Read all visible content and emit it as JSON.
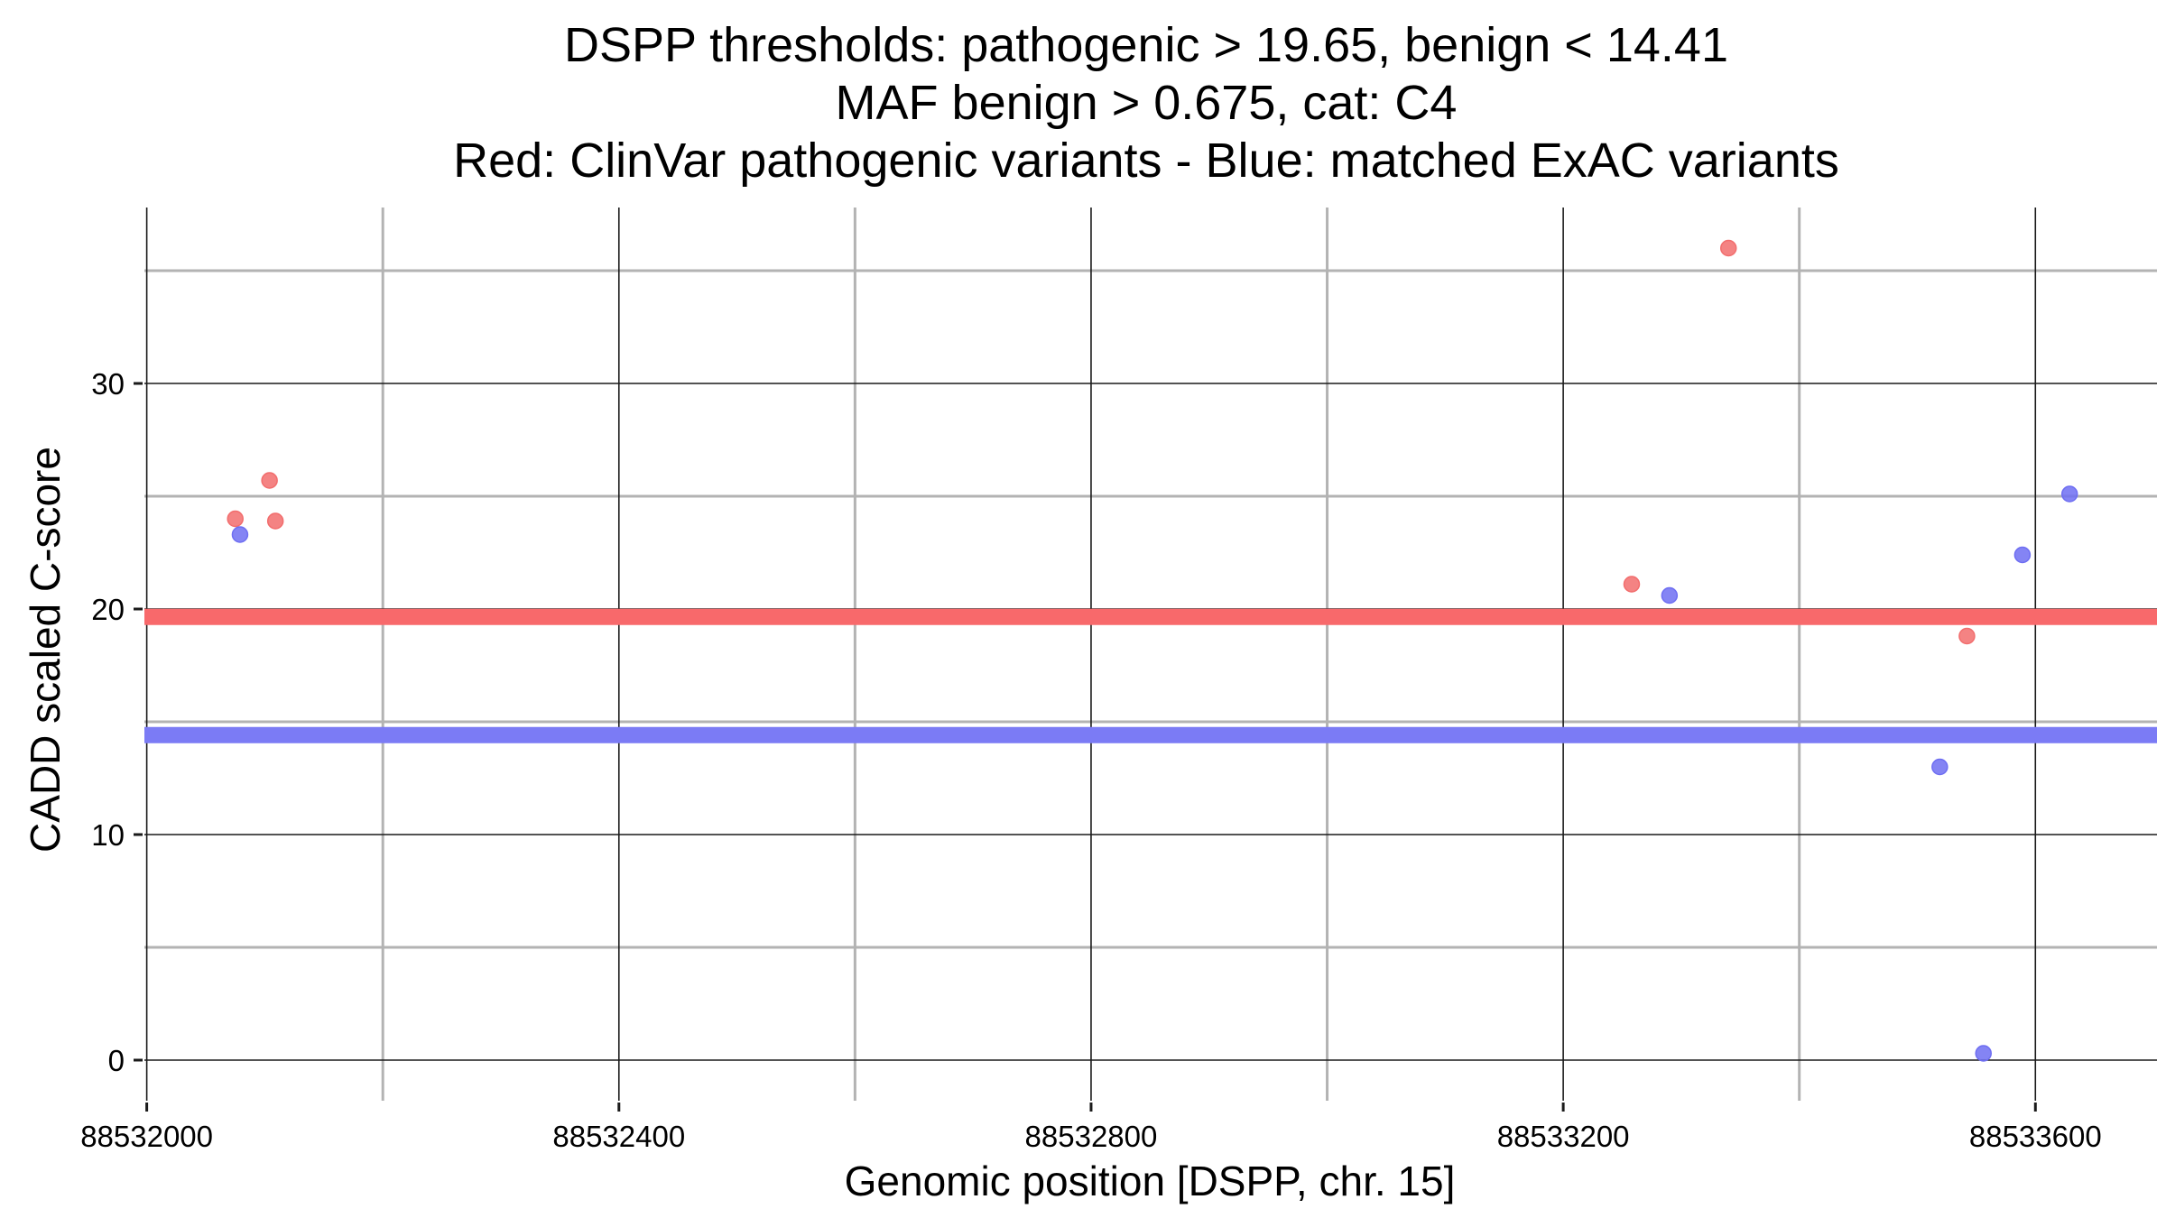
{
  "chart_data": {
    "type": "scatter",
    "title_lines": [
      "DSPP thresholds: pathogenic > 19.65, benign < 14.41",
      "MAF benign > 0.675, cat: C4",
      "Red: ClinVar pathogenic variants - Blue: matched ExAC variants"
    ],
    "xlabel": "Genomic position [DSPP, chr. 15]",
    "ylabel": "CADD scaled C-score",
    "xlim": [
      88531998,
      88533703
    ],
    "ylim": [
      -1.8,
      37.8
    ],
    "x_ticks": [
      88532000,
      88532400,
      88532800,
      88533200,
      88533600
    ],
    "x_tick_labels": [
      "88532000",
      "88532400",
      "88532800",
      "88533200",
      "88533600"
    ],
    "x_minor_ticks": [
      88532200,
      88532600,
      88533000,
      88533400
    ],
    "y_ticks": [
      0,
      10,
      20,
      30
    ],
    "y_tick_labels": [
      "0",
      "10",
      "20",
      "30"
    ],
    "y_minor_ticks": [
      5,
      15,
      25,
      35
    ],
    "grid": true,
    "legend": "none",
    "thresholds": [
      {
        "label": "pathogenic",
        "value": 19.65,
        "color": "#f8696b"
      },
      {
        "label": "benign",
        "value": 14.41,
        "color": "#7b7bf5"
      }
    ],
    "series": [
      {
        "color": "#f26d6d",
        "points": [
          {
            "x": 88532075,
            "y": 24.0
          },
          {
            "x": 88532104,
            "y": 25.7
          },
          {
            "x": 88532109,
            "y": 23.9
          },
          {
            "x": 88533258,
            "y": 21.1
          },
          {
            "x": 88533340,
            "y": 36.0
          },
          {
            "x": 88533542,
            "y": 18.8
          }
        ]
      },
      {
        "color": "#6e6ef2",
        "points": [
          {
            "x": 88532079,
            "y": 23.3
          },
          {
            "x": 88533290,
            "y": 20.6
          },
          {
            "x": 88533519,
            "y": 13.0
          },
          {
            "x": 88533556,
            "y": 0.3
          },
          {
            "x": 88533589,
            "y": 22.4
          },
          {
            "x": 88533629,
            "y": 25.1
          }
        ]
      }
    ]
  }
}
